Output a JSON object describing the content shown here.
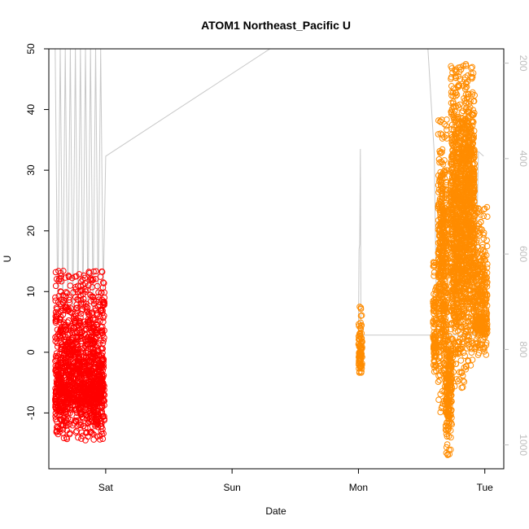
{
  "chart_data": {
    "type": "scatter",
    "title": "ATOM1 Northeast_Pacific U",
    "xlabel": "Date",
    "ylabel": "U",
    "xlim": [
      -0.45,
      3.15
    ],
    "ylim": [
      -19.2,
      50
    ],
    "x_ticks": [
      {
        "value": 0,
        "label": "Sat"
      },
      {
        "value": 1,
        "label": "Sun"
      },
      {
        "value": 2,
        "label": "Mon"
      },
      {
        "value": 3,
        "label": "Tue"
      }
    ],
    "y_ticks": [
      -10,
      0,
      10,
      20,
      30,
      40,
      50
    ],
    "secondary_axis": {
      "side": "right",
      "color": "#bdbdbd",
      "reversed": true,
      "ticks": [
        200,
        400,
        600,
        800,
        1000
      ],
      "lim": [
        1050,
        170
      ]
    },
    "series": [
      {
        "color": "#ff0000",
        "clusters": [
          {
            "x0": -0.4,
            "x1": -0.01,
            "y_min": -14.5,
            "y_max": 13.5,
            "y_center": -5,
            "density": 1400
          }
        ],
        "extra_points": [
          {
            "x": -0.03,
            "y": 13.3
          },
          {
            "x": -0.02,
            "y": 11.5
          },
          {
            "x": -0.01,
            "y": 9.0
          },
          {
            "x": -0.04,
            "y": 7.0
          },
          {
            "x": -0.02,
            "y": 5.0
          },
          {
            "x": -0.39,
            "y": 5.8
          },
          {
            "x": -0.27,
            "y": 6.5
          },
          {
            "x": -0.19,
            "y": 4.0
          },
          {
            "x": -0.16,
            "y": -14.5
          }
        ]
      },
      {
        "color": "#ff8c00",
        "clusters": [
          {
            "x0": 2.0,
            "x1": 2.03,
            "y_min": -4.2,
            "y_max": 7.5,
            "y_center": 0,
            "density": 90
          },
          {
            "x0": 2.59,
            "x1": 2.62,
            "y_min": -3.5,
            "y_max": 15,
            "y_center": 3,
            "density": 120
          },
          {
            "x0": 2.63,
            "x1": 2.7,
            "y_min": -10,
            "y_max": 38.5,
            "y_center": 15,
            "density": 500
          },
          {
            "x0": 2.69,
            "x1": 2.74,
            "y_min": -17,
            "y_max": 5,
            "y_center": -5,
            "density": 200
          },
          {
            "x0": 2.73,
            "x1": 2.84,
            "y_min": -6,
            "y_max": 47.5,
            "y_center": 20,
            "density": 900
          },
          {
            "x0": 2.84,
            "x1": 2.92,
            "y_min": -3,
            "y_max": 47.5,
            "y_center": 25,
            "density": 700
          },
          {
            "x0": 2.92,
            "x1": 3.02,
            "y_min": -0.5,
            "y_max": 24,
            "y_center": 6,
            "density": 350
          }
        ],
        "extra_points": [
          {
            "x": 2.01,
            "y": 7.5
          },
          {
            "x": 2.02,
            "y": 6.0
          },
          {
            "x": 2.66,
            "y": 38.3
          },
          {
            "x": 2.72,
            "y": -16.8
          },
          {
            "x": 2.83,
            "y": 47.2
          },
          {
            "x": 2.9,
            "y": 47.0
          }
        ]
      }
    ],
    "trace": {
      "color": "#c8c8c8",
      "axis": "secondary",
      "points": [
        [
          -0.4,
          120
        ],
        [
          -0.38,
          720
        ],
        [
          -0.36,
          120
        ],
        [
          -0.34,
          730
        ],
        [
          -0.32,
          120
        ],
        [
          -0.3,
          720
        ],
        [
          -0.28,
          120
        ],
        [
          -0.26,
          730
        ],
        [
          -0.24,
          120
        ],
        [
          -0.22,
          720
        ],
        [
          -0.2,
          120
        ],
        [
          -0.18,
          715
        ],
        [
          -0.16,
          120
        ],
        [
          -0.14,
          725
        ],
        [
          -0.12,
          120
        ],
        [
          -0.1,
          720
        ],
        [
          -0.08,
          120
        ],
        [
          -0.06,
          712
        ],
        [
          -0.04,
          120
        ],
        [
          -0.02,
          690
        ],
        [
          0.0,
          395
        ],
        [
          1.3,
          60
        ],
        [
          2.42,
          120
        ],
        [
          2.44,
          120
        ],
        [
          2.5,
          150
        ],
        [
          2.55,
          120
        ],
        [
          2.6,
          390
        ],
        [
          2.62,
          770
        ],
        [
          2.0,
          770
        ],
        [
          2.005,
          590
        ],
        [
          2.01,
          580
        ],
        [
          2.015,
          380
        ],
        [
          2.02,
          770
        ],
        [
          2.92,
          770
        ],
        [
          2.95,
          385
        ],
        [
          2.99,
          395
        ]
      ]
    }
  }
}
